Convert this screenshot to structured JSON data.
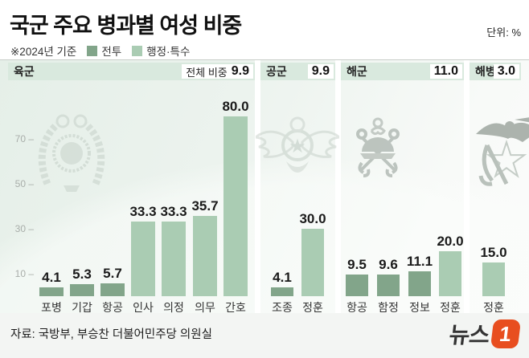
{
  "title": "국군 주요 병과별 여성 비중",
  "unit_label": "단위: %",
  "note": "※2024년 기준",
  "legend": [
    {
      "label": "전투",
      "color": "#82a58a"
    },
    {
      "label": "행정·특수",
      "color": "#aaccb3"
    }
  ],
  "source": "자료: 국방부, 부승찬 더불어민주당 의원실",
  "logo": {
    "text": "뉴스",
    "accent_text": "1",
    "accent_color": "#e84e1f"
  },
  "colors": {
    "band_bg": "#d9e9de",
    "chart_bg_from": "#e5efe8",
    "chart_bg_to": "#fbfcfb",
    "bar_combat": "#82a58a",
    "bar_admin": "#aaccb3"
  },
  "chart_data": {
    "type": "bar",
    "title": "국군 주요 병과별 여성 비중",
    "ylabel": "",
    "xlabel": "",
    "unit": "%",
    "ylim": [
      0,
      85
    ],
    "yticks": [
      10,
      30,
      50,
      70
    ],
    "legend_entries": [
      "전투",
      "행정·특수"
    ],
    "groups": [
      {
        "name": "육군",
        "total_label": "전체 비중",
        "total": "9.9",
        "emblem": "army-emblem",
        "bars": [
          {
            "label": "포병",
            "value": 4.1,
            "series": "전투"
          },
          {
            "label": "기갑",
            "value": 5.3,
            "series": "전투"
          },
          {
            "label": "항공",
            "value": 5.7,
            "series": "전투"
          },
          {
            "label": "인사",
            "value": 33.3,
            "series": "행정·특수"
          },
          {
            "label": "의정",
            "value": 33.3,
            "series": "행정·특수"
          },
          {
            "label": "의무",
            "value": 35.7,
            "series": "행정·특수"
          },
          {
            "label": "간호",
            "value": 80.0,
            "series": "행정·특수"
          }
        ]
      },
      {
        "name": "공군",
        "total_label": "",
        "total": "9.9",
        "emblem": "airforce-emblem",
        "bars": [
          {
            "label": "조종",
            "value": 4.1,
            "series": "전투"
          },
          {
            "label": "정훈",
            "value": 30.0,
            "series": "행정·특수"
          }
        ]
      },
      {
        "name": "해군",
        "total_label": "",
        "total": "11.0",
        "emblem": "navy-emblem",
        "bars": [
          {
            "label": "항공",
            "value": 9.5,
            "series": "전투"
          },
          {
            "label": "함정",
            "value": 9.6,
            "series": "전투"
          },
          {
            "label": "정보",
            "value": 11.1,
            "series": "전투"
          },
          {
            "label": "정훈",
            "value": 20.0,
            "series": "행정·특수"
          }
        ]
      },
      {
        "name": "해병대",
        "total_label": "",
        "total": "3.0",
        "emblem": "marines-emblem",
        "bars": [
          {
            "label": "정훈",
            "value": 15.0,
            "series": "행정·특수"
          }
        ]
      }
    ]
  }
}
